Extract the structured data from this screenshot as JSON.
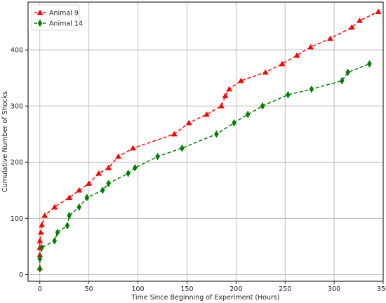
{
  "chart_data": {
    "type": "line",
    "title": "",
    "xlabel": "Time Since Beginning of Experiment (Hours)",
    "ylabel": "Cumulative Number of Shocks",
    "xlim": [
      -12,
      350
    ],
    "ylim": [
      -12,
      485
    ],
    "xticks": [
      0,
      50,
      100,
      150,
      200,
      250,
      300,
      350
    ],
    "yticks": [
      0,
      100,
      200,
      300,
      400
    ],
    "grid": true,
    "legend_position": "top-left",
    "series": [
      {
        "name": "Animal 9",
        "color": "#ff0000",
        "marker": "triangle",
        "linestyle": "dashed",
        "points": [
          [
            0,
            12
          ],
          [
            0,
            35
          ],
          [
            0,
            48
          ],
          [
            0,
            60
          ],
          [
            1,
            75
          ],
          [
            2,
            88
          ],
          [
            5,
            105
          ],
          [
            15,
            120
          ],
          [
            30,
            137
          ],
          [
            40,
            150
          ],
          [
            50,
            162
          ],
          [
            60,
            180
          ],
          [
            70,
            190
          ],
          [
            80,
            210
          ],
          [
            95,
            225
          ],
          [
            137,
            250
          ],
          [
            152,
            270
          ],
          [
            170,
            285
          ],
          [
            185,
            300
          ],
          [
            189,
            318
          ],
          [
            193,
            330
          ],
          [
            205,
            345
          ],
          [
            230,
            360
          ],
          [
            247,
            375
          ],
          [
            262,
            390
          ],
          [
            276,
            405
          ],
          [
            296,
            420
          ],
          [
            318,
            440
          ],
          [
            326,
            452
          ],
          [
            345,
            468
          ]
        ]
      },
      {
        "name": "Animal 14",
        "color": "#008000",
        "marker": "diamond",
        "linestyle": "dashed",
        "points": [
          [
            0,
            10
          ],
          [
            0,
            28
          ],
          [
            2,
            48
          ],
          [
            15,
            60
          ],
          [
            18,
            75
          ],
          [
            28,
            87
          ],
          [
            30,
            105
          ],
          [
            40,
            120
          ],
          [
            48,
            137
          ],
          [
            64,
            150
          ],
          [
            70,
            162
          ],
          [
            90,
            180
          ],
          [
            97,
            190
          ],
          [
            120,
            210
          ],
          [
            145,
            225
          ],
          [
            180,
            250
          ],
          [
            198,
            270
          ],
          [
            212,
            285
          ],
          [
            227,
            300
          ],
          [
            253,
            320
          ],
          [
            277,
            330
          ],
          [
            308,
            345
          ],
          [
            314,
            360
          ],
          [
            336,
            375
          ]
        ]
      }
    ]
  }
}
